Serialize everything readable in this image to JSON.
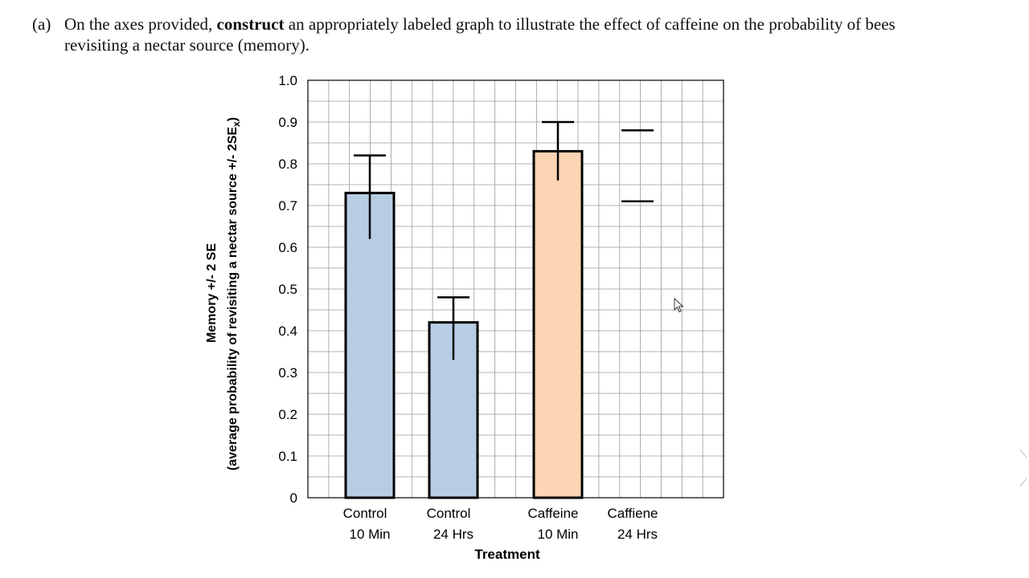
{
  "question": {
    "number": "(a)",
    "prefix": "On the axes provided, ",
    "bold_word": "construct",
    "suffix": " an appropriately labeled graph to illustrate the effect of caffeine on the probability of bees revisiting a nectar source (memory)."
  },
  "chart_data": {
    "type": "bar",
    "categories": [
      "Control 10 Min",
      "Control 24 Hrs",
      "Caffeine 10 Min",
      "Caffiene 24 Hrs"
    ],
    "category_lines": [
      [
        "Control",
        "10 Min"
      ],
      [
        "Control",
        "24 Hrs"
      ],
      [
        "Caffeine",
        "10 Min"
      ],
      [
        "Caffiene",
        "24 Hrs"
      ]
    ],
    "values": [
      0.73,
      0.42,
      0.83,
      null
    ],
    "error_bars": [
      {
        "low": 0.62,
        "high": 0.82
      },
      {
        "low": 0.33,
        "high": 0.48
      },
      {
        "low": 0.76,
        "high": 0.9
      },
      {
        "low": 0.71,
        "high": 0.88
      }
    ],
    "bar_colors": [
      "#b8cce4",
      "#b8cce4",
      "#fcd5b4",
      null
    ],
    "xlabel": "Treatment",
    "ylabel_line1": "Memory  +/- 2 SE",
    "ylabel_line2_prefix": "(average probability of revisiting a nectar source  +/- 2SE",
    "ylabel_line2_sub": "x",
    "ylabel_line2_suffix": ")",
    "yticks": [
      "0",
      "0.1",
      "0.2",
      "0.3",
      "0.4",
      "0.5",
      "0.6",
      "0.7",
      "0.8",
      "0.9",
      "1.0"
    ],
    "ylim": [
      0,
      1.0
    ],
    "grid": true
  }
}
